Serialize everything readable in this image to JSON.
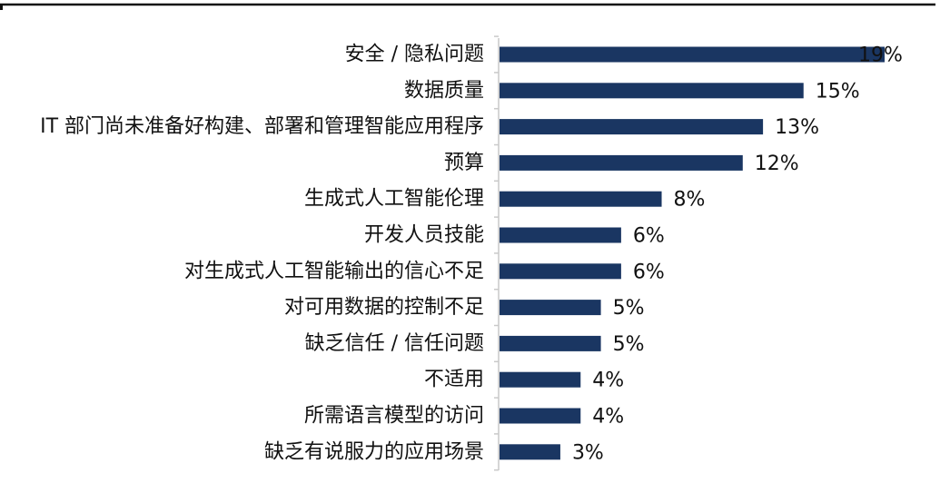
{
  "colors": {
    "bar": "#1a3662",
    "axis": "#c9c9c9",
    "top_rule": "#111111",
    "text": "#111111"
  },
  "chart_data": {
    "type": "bar",
    "orientation": "horizontal",
    "title": "",
    "xlabel": "",
    "ylabel": "",
    "xlim": [
      0,
      19
    ],
    "grid": false,
    "legend": "none",
    "categories": [
      "安全 / 隐私问题",
      "数据质量",
      "IT 部门尚未准备好构建、部署和管理智能应用程序",
      "预算",
      "生成式人工智能伦理",
      "开发人员技能",
      "对生成式人工智能输出的信心不足",
      "对可用数据的控制不足",
      "缺乏信任 / 信任问题",
      "不适用",
      "所需语言模型的访问",
      "缺乏有说服力的应用场景"
    ],
    "values": [
      19,
      15,
      13,
      12,
      8,
      6,
      6,
      5,
      5,
      4,
      4,
      3
    ],
    "value_labels": [
      "19%",
      "15%",
      "13%",
      "12%",
      "8%",
      "6%",
      "6%",
      "5%",
      "5%",
      "4%",
      "4%",
      "3%"
    ]
  }
}
